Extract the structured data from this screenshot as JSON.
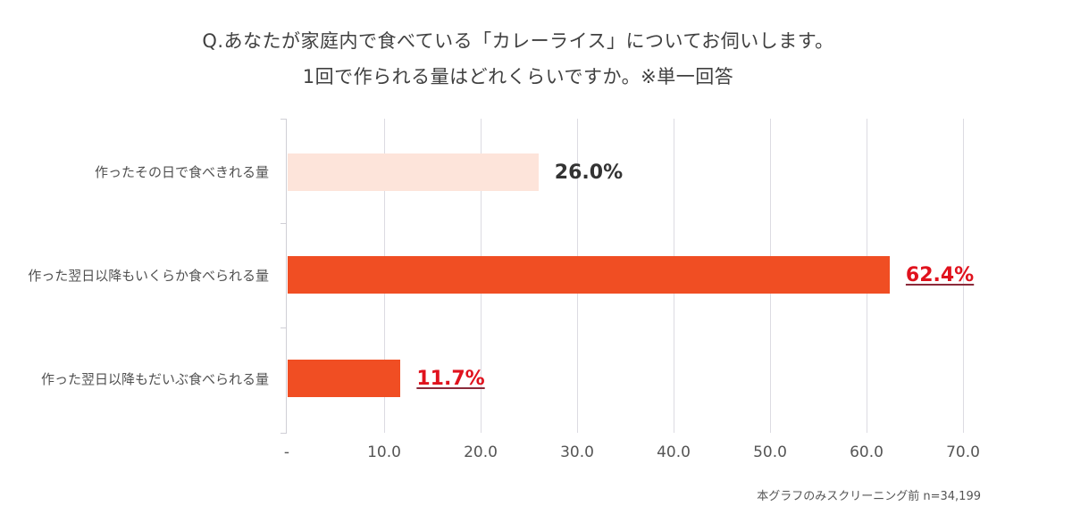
{
  "title": {
    "line1": "Q.あなたが家庭内で食べている「カレーライス」についてお伺いします。",
    "line2": "1回で作られる量はどれくらいですか。※単一回答"
  },
  "note": "本グラフのみスクリーニング前 n=34,199",
  "colors": {
    "bar_light": "#fde4da",
    "bar_dark": "#f04e23",
    "highlight_text": "#e0121d",
    "plain_text": "#333333",
    "grid": "#dcdbe2"
  },
  "x_axis": {
    "ticks": [
      "-",
      "10.0",
      "20.0",
      "30.0",
      "40.0",
      "50.0",
      "60.0",
      "70.0"
    ]
  },
  "bars": [
    {
      "label": "作ったその日で食べきれる量",
      "value": 26.0,
      "display": "26.0%"
    },
    {
      "label": "作った翌日以降もいくらか食べられる量",
      "value": 62.4,
      "display": "62.4%"
    },
    {
      "label": "作った翌日以降もだいぶ食べられる量",
      "value": 11.7,
      "display": "11.7%"
    }
  ],
  "chart_data": {
    "type": "bar",
    "orientation": "horizontal",
    "title": "Q.あなたが家庭内で食べている「カレーライス」についてお伺いします。 1回で作られる量はどれくらいですか。※単一回答",
    "categories": [
      "作ったその日で食べきれる量",
      "作った翌日以降もいくらか食べられる量",
      "作った翌日以降もだいぶ食べられる量"
    ],
    "values": [
      26.0,
      62.4,
      11.7
    ],
    "data_labels": [
      "26.0%",
      "62.4%",
      "11.7%"
    ],
    "xlabel": "",
    "ylabel": "",
    "xlim": [
      0,
      70
    ],
    "x_ticks": [
      "-",
      "10.0",
      "20.0",
      "30.0",
      "40.0",
      "50.0",
      "60.0",
      "70.0"
    ],
    "grid": true,
    "legend": null,
    "annotation": "本グラフのみスクリーニング前 n=34,199"
  }
}
